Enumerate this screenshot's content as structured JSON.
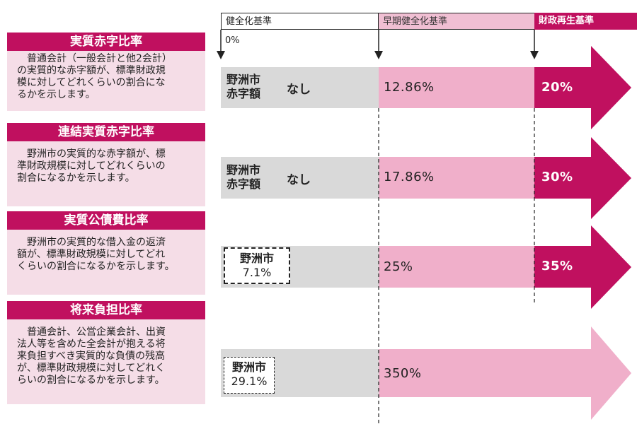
{
  "header": {
    "col1": "健全化基準",
    "col2": "早期健全化基準",
    "col3": "財政再生基準",
    "zero": "0%"
  },
  "cards": [
    {
      "title": "実質赤字比率",
      "lines": [
        "普通会計（一般会計と他2会計）",
        "の実質的な赤字額が、標準財政規",
        "模に対してどれくらいの割合にな",
        "るかを示します。"
      ]
    },
    {
      "title": "連結実質赤字比率",
      "lines": [
        "野洲市の実質的な赤字額が、標",
        "準財政規模に対してどれくらいの",
        "割合になるかを示します。"
      ]
    },
    {
      "title": "実質公債費比率",
      "lines": [
        "野洲市の実質的な借入金の返済",
        "額が、標準財政規模に対してどれ",
        "くらいの割合になるかを示します。"
      ]
    },
    {
      "title": "将来負担比率",
      "lines": [
        "普通会計、公営企業会計、出資",
        "法人等を含めた全会計が抱える将",
        "来負担すべき実質的な負債の残高",
        "が、標準財政規模に対してどれく",
        "らいの割合になるかを示します。"
      ]
    }
  ],
  "rows": [
    {
      "city_line1": "野洲市",
      "city_line2": "赤字額",
      "value": "なし",
      "early": "12.86%",
      "rebuild": "20%"
    },
    {
      "city_line1": "野洲市",
      "city_line2": "赤字額",
      "value": "なし",
      "early": "17.86%",
      "rebuild": "30%"
    },
    {
      "city_line1": "野洲市",
      "city_line2": "7.1%",
      "early": "25%",
      "rebuild": "35%"
    },
    {
      "city_line1": "野洲市",
      "city_line2": "29.1%",
      "early": "350%"
    }
  ],
  "colors": {
    "magenta": "#c0105f",
    "pink": "#f0afca",
    "light_pink": "#f5dde7",
    "grey": "#d9d9d9"
  }
}
